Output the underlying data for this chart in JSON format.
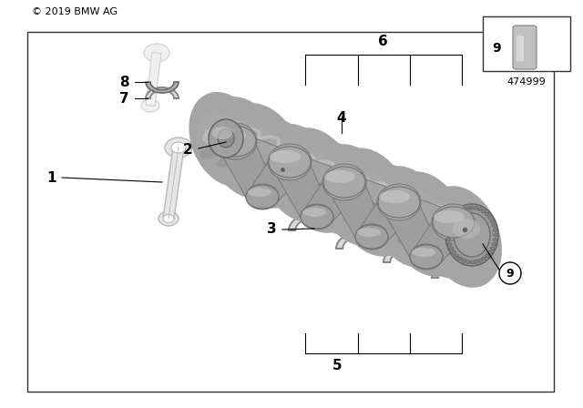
{
  "bg_color": "#ffffff",
  "border_color": "#000000",
  "copyright": "© 2019 BMW AG",
  "part_number": "474999",
  "crankshaft_color": "#a8a8a8",
  "crankshaft_light": "#d0d0d0",
  "crankshaft_dark": "#787878",
  "bearing_color": "#b0b0b0",
  "bearing_light": "#d8d8d8",
  "bearing_dark": "#888888",
  "rod_color": "#e8e8e8",
  "rod_edge": "#c0c0c0"
}
